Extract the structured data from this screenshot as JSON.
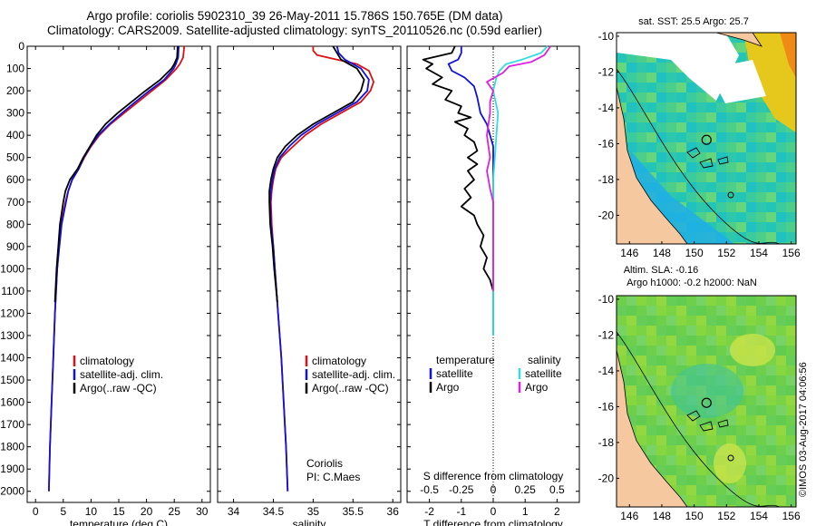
{
  "header": {
    "line1": "Argo profile: coriolis 5902310_39 26-May-2011 15.786S 150.765E (DM data)",
    "line2": "Climatology: CARS2009. Satellite-adjusted climatology: synTS_20110526.nc (0.59d earlier)"
  },
  "side_label": "©IMOS 03-Aug-2017 04:06:56",
  "colors": {
    "climatology": "#dd1111",
    "satellite": "#1111dd",
    "argo": "#000000",
    "sal_satellite": "#33dddd",
    "sal_argo": "#dd22dd",
    "land": "#f6c8a0"
  },
  "chart_data": [
    {
      "type": "line",
      "id": "temperature",
      "xlabel": "temperature (deg C)",
      "xlim": [
        -1.5,
        31.5
      ],
      "xticks": [
        0,
        5,
        10,
        15,
        20,
        25,
        30
      ],
      "ylim": [
        2050,
        0
      ],
      "yticks": [
        0,
        100,
        200,
        300,
        400,
        500,
        600,
        700,
        800,
        900,
        1000,
        1100,
        1200,
        1300,
        1400,
        1500,
        1600,
        1700,
        1800,
        1900,
        2000
      ],
      "legend": [
        "climatology",
        "satellite-adj. clim.",
        "Argo(..raw -QC)"
      ],
      "series": [
        {
          "name": "climatology",
          "color": "climatology",
          "points": [
            [
              26.8,
              0
            ],
            [
              26.6,
              50
            ],
            [
              26.0,
              80
            ],
            [
              25.4,
              100
            ],
            [
              23.5,
              150
            ],
            [
              21,
              200
            ],
            [
              18.5,
              250
            ],
            [
              16,
              300
            ],
            [
              13.5,
              350
            ],
            [
              11.5,
              400
            ],
            [
              10,
              450
            ],
            [
              8.8,
              500
            ],
            [
              7.8,
              550
            ],
            [
              6.6,
              600
            ],
            [
              5.9,
              650
            ],
            [
              5.4,
              700
            ],
            [
              5.0,
              750
            ],
            [
              4.6,
              800
            ],
            [
              4.2,
              900
            ],
            [
              3.9,
              1000
            ],
            [
              3.5,
              1200
            ],
            [
              3.2,
              1400
            ],
            [
              2.9,
              1600
            ],
            [
              2.6,
              1800
            ],
            [
              2.4,
              2000
            ]
          ]
        },
        {
          "name": "satellite-adj. clim.",
          "color": "satellite",
          "points": [
            [
              25.8,
              0
            ],
            [
              25.7,
              50
            ],
            [
              25.3,
              80
            ],
            [
              24.9,
              100
            ],
            [
              23.2,
              150
            ],
            [
              20.5,
              200
            ],
            [
              18,
              250
            ],
            [
              15.6,
              300
            ],
            [
              13.3,
              350
            ],
            [
              11.3,
              400
            ],
            [
              9.9,
              450
            ],
            [
              8.7,
              500
            ],
            [
              7.8,
              550
            ],
            [
              6.6,
              600
            ],
            [
              5.9,
              650
            ],
            [
              5.5,
              700
            ],
            [
              5.1,
              750
            ],
            [
              4.7,
              800
            ],
            [
              4.3,
              900
            ],
            [
              3.9,
              1000
            ],
            [
              3.5,
              1200
            ],
            [
              3.2,
              1400
            ],
            [
              2.9,
              1600
            ],
            [
              2.6,
              1800
            ],
            [
              2.4,
              2000
            ]
          ]
        },
        {
          "name": "Argo(..raw -QC)",
          "color": "argo",
          "points": [
            [
              25.6,
              0
            ],
            [
              25.5,
              50
            ],
            [
              25.0,
              80
            ],
            [
              24.5,
              100
            ],
            [
              22.5,
              150
            ],
            [
              19.8,
              200
            ],
            [
              17.3,
              250
            ],
            [
              14.8,
              300
            ],
            [
              12.6,
              350
            ],
            [
              11.0,
              400
            ],
            [
              9.8,
              450
            ],
            [
              8.6,
              500
            ],
            [
              7.6,
              550
            ],
            [
              6.2,
              600
            ],
            [
              5.4,
              650
            ],
            [
              5.0,
              700
            ],
            [
              4.7,
              750
            ],
            [
              4.4,
              800
            ],
            [
              4.1,
              900
            ],
            [
              3.8,
              1000
            ],
            [
              3.5,
              1150
            ]
          ]
        }
      ],
      "annotations": []
    },
    {
      "type": "line",
      "id": "salinity",
      "xlabel": "salinity",
      "xlim": [
        33.8,
        36.1
      ],
      "xticks": [
        34,
        34.5,
        35,
        35.5,
        36
      ],
      "ylim": [
        2050,
        0
      ],
      "legend": [
        "climatology",
        "satellite-adj. clim.",
        "Argo(..raw -QC)"
      ],
      "series": [
        {
          "name": "climatology",
          "color": "climatology",
          "points": [
            [
              35.0,
              0
            ],
            [
              35.0,
              20
            ],
            [
              35.05,
              40
            ],
            [
              35.3,
              60
            ],
            [
              35.55,
              80
            ],
            [
              35.7,
              110
            ],
            [
              35.76,
              160
            ],
            [
              35.72,
              200
            ],
            [
              35.6,
              250
            ],
            [
              35.35,
              300
            ],
            [
              35.1,
              350
            ],
            [
              34.9,
              400
            ],
            [
              34.75,
              450
            ],
            [
              34.6,
              500
            ],
            [
              34.53,
              550
            ],
            [
              34.5,
              600
            ],
            [
              34.48,
              650
            ],
            [
              34.47,
              700
            ],
            [
              34.48,
              800
            ],
            [
              34.5,
              900
            ],
            [
              34.52,
              1000
            ],
            [
              34.56,
              1200
            ],
            [
              34.6,
              1400
            ],
            [
              34.63,
              1600
            ],
            [
              34.66,
              1800
            ],
            [
              34.68,
              2000
            ]
          ]
        },
        {
          "name": "satellite-adj. clim.",
          "color": "satellite",
          "points": [
            [
              35.3,
              0
            ],
            [
              35.32,
              30
            ],
            [
              35.4,
              60
            ],
            [
              35.6,
              100
            ],
            [
              35.7,
              150
            ],
            [
              35.68,
              200
            ],
            [
              35.55,
              250
            ],
            [
              35.3,
              300
            ],
            [
              35.05,
              350
            ],
            [
              34.85,
              400
            ],
            [
              34.7,
              450
            ],
            [
              34.58,
              500
            ],
            [
              34.52,
              550
            ],
            [
              34.49,
              600
            ],
            [
              34.47,
              650
            ],
            [
              34.46,
              700
            ],
            [
              34.47,
              800
            ],
            [
              34.5,
              900
            ],
            [
              34.52,
              1000
            ],
            [
              34.56,
              1200
            ],
            [
              34.6,
              1400
            ],
            [
              34.63,
              1600
            ],
            [
              34.66,
              1800
            ],
            [
              34.68,
              2000
            ]
          ]
        },
        {
          "name": "Argo(..raw -QC)",
          "color": "argo",
          "points": [
            [
              35.25,
              0
            ],
            [
              35.3,
              30
            ],
            [
              35.35,
              60
            ],
            [
              35.55,
              100
            ],
            [
              35.64,
              150
            ],
            [
              35.6,
              200
            ],
            [
              35.5,
              250
            ],
            [
              35.25,
              300
            ],
            [
              35.0,
              350
            ],
            [
              34.8,
              400
            ],
            [
              34.65,
              450
            ],
            [
              34.55,
              500
            ],
            [
              34.5,
              550
            ],
            [
              34.47,
              600
            ],
            [
              34.45,
              650
            ],
            [
              34.45,
              700
            ],
            [
              34.46,
              800
            ],
            [
              34.49,
              900
            ],
            [
              34.51,
              1000
            ],
            [
              34.55,
              1150
            ]
          ]
        }
      ],
      "annotations": [
        "Coriolis",
        "PI: C.Maes"
      ]
    },
    {
      "type": "line",
      "id": "difference",
      "xlabel": "T difference from climatology",
      "xlabel_top": "S difference from climatology",
      "xlim": [
        -2.7,
        2.7
      ],
      "xticks": [
        -2,
        -1,
        0,
        1,
        2
      ],
      "top_ticks": [
        "-0.5",
        "-0.25",
        "0",
        "0.25",
        "0.5"
      ],
      "ylim": [
        2050,
        0
      ],
      "legend_temperature_title": "temperature",
      "legend_salinity_title": "salinity",
      "legend_temperature": [
        "satellite",
        "Argo"
      ],
      "legend_salinity": [
        "satellite",
        "Argo"
      ],
      "series": [
        {
          "name": "T satellite",
          "color": "satellite",
          "points": [
            [
              -1.0,
              0
            ],
            [
              -1.0,
              30
            ],
            [
              -1.1,
              60
            ],
            [
              -1.4,
              80
            ],
            [
              -1.3,
              110
            ],
            [
              -0.9,
              140
            ],
            [
              -0.6,
              180
            ],
            [
              -0.5,
              230
            ],
            [
              -0.4,
              300
            ],
            [
              -0.2,
              350
            ],
            [
              -0.1,
              400
            ],
            [
              0,
              450
            ],
            [
              0,
              1300
            ]
          ]
        },
        {
          "name": "T Argo",
          "color": "argo",
          "points": [
            [
              -1.2,
              0
            ],
            [
              -1.3,
              30
            ],
            [
              -2.2,
              60
            ],
            [
              -1.9,
              80
            ],
            [
              -2.1,
              100
            ],
            [
              -1.6,
              140
            ],
            [
              -1.9,
              170
            ],
            [
              -1.3,
              200
            ],
            [
              -1.5,
              240
            ],
            [
              -1.0,
              270
            ],
            [
              -1.1,
              300
            ],
            [
              -0.7,
              320
            ],
            [
              -1.2,
              340
            ],
            [
              -0.8,
              370
            ],
            [
              -0.9,
              400
            ],
            [
              -0.6,
              430
            ],
            [
              -0.5,
              470
            ],
            [
              -0.8,
              500
            ],
            [
              -0.5,
              530
            ],
            [
              -0.8,
              560
            ],
            [
              -0.6,
              600
            ],
            [
              -0.9,
              640
            ],
            [
              -0.7,
              680
            ],
            [
              -1.0,
              720
            ],
            [
              -0.6,
              760
            ],
            [
              -0.5,
              800
            ],
            [
              -0.3,
              850
            ],
            [
              -0.4,
              900
            ],
            [
              -0.2,
              950
            ],
            [
              -0.3,
              1000
            ],
            [
              -0.1,
              1050
            ],
            [
              0,
              1100
            ]
          ]
        },
        {
          "name": "S satellite",
          "color": "sal_satellite",
          "points": [
            [
              1.7,
              0
            ],
            [
              1.5,
              30
            ],
            [
              0.9,
              60
            ],
            [
              0.4,
              80
            ],
            [
              0.2,
              110
            ],
            [
              0.1,
              140
            ],
            [
              0,
              200
            ],
            [
              0.15,
              300
            ],
            [
              0.1,
              400
            ],
            [
              0.05,
              500
            ],
            [
              0,
              600
            ],
            [
              0,
              1300
            ]
          ]
        },
        {
          "name": "S Argo",
          "color": "sal_argo",
          "points": [
            [
              1.8,
              0
            ],
            [
              1.6,
              40
            ],
            [
              1.2,
              70
            ],
            [
              0.5,
              90
            ],
            [
              0.3,
              120
            ],
            [
              -0.2,
              160
            ],
            [
              0,
              200
            ],
            [
              -0.1,
              250
            ],
            [
              -0.1,
              300
            ],
            [
              -0.2,
              400
            ],
            [
              -0.1,
              500
            ],
            [
              -0.2,
              560
            ],
            [
              -0.1,
              640
            ],
            [
              0,
              700
            ],
            [
              0,
              1100
            ]
          ]
        }
      ],
      "annotations": []
    }
  ],
  "maps": [
    {
      "id": "sst",
      "title": "sat. SST: 25.5 Argo: 25.7",
      "xticks": [
        "146",
        "148",
        "150",
        "152",
        "154",
        "156"
      ],
      "yticks": [
        "-10",
        "-12",
        "-14",
        "-16",
        "-18",
        "-20"
      ]
    },
    {
      "id": "sla",
      "title": "Altim. SLA: -0.16",
      "title2": "Argo h1000: -0.2 h2000: NaN",
      "xticks": [
        "146",
        "148",
        "150",
        "152",
        "154",
        "156"
      ],
      "yticks": [
        "-10",
        "-12",
        "-14",
        "-16",
        "-18",
        "-20"
      ]
    }
  ]
}
